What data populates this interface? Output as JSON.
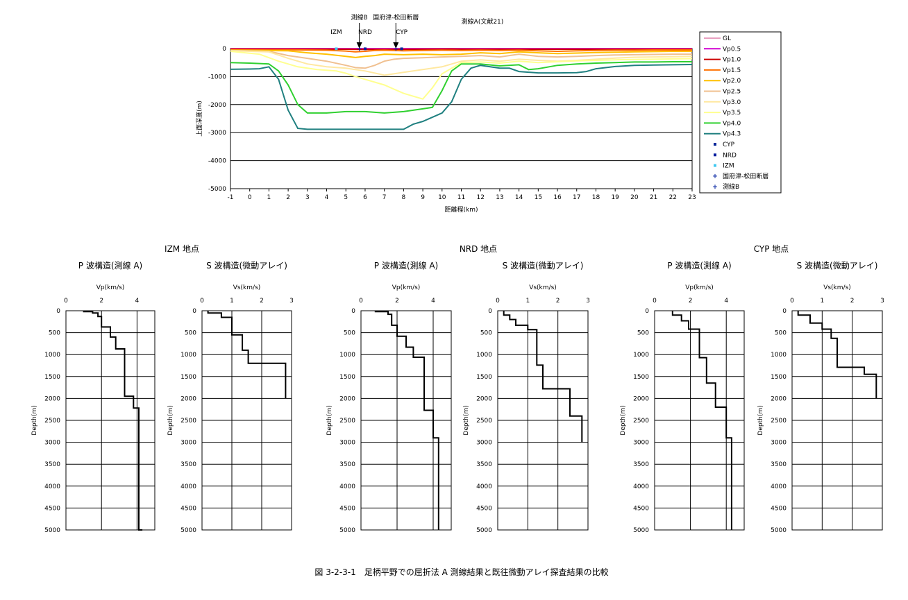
{
  "figure": {
    "caption": "図 3-2-3-1　足柄平野での屈折法 A 測線結果と既往微動アレイ探査結果の比較"
  },
  "chart_data": [
    {
      "type": "line",
      "xlabel": "距離程(km)",
      "ylabel": "上面深度(m)",
      "xlim": [
        -1,
        23
      ],
      "ylim": [
        -5000,
        0
      ],
      "xticks": [
        -1,
        0,
        1,
        2,
        3,
        4,
        5,
        6,
        7,
        8,
        9,
        10,
        11,
        12,
        13,
        14,
        15,
        16,
        17,
        18,
        19,
        20,
        21,
        22,
        23
      ],
      "yticks": [
        0,
        -1000,
        -2000,
        -3000,
        -4000,
        -5000
      ],
      "grid": "horizontal",
      "legend_position": "right",
      "annotations": [
        {
          "text": "測線B",
          "x": 5.7
        },
        {
          "text": "国府津-松田断層",
          "x": 7.6
        },
        {
          "text": "測線A(文献21)",
          "x": 12.1
        },
        {
          "text": "IZM",
          "x": 4.5
        },
        {
          "text": "NRD",
          "x": 6.0
        },
        {
          "text": "CYP",
          "x": 7.9
        }
      ],
      "series": [
        {
          "name": "GL",
          "color": "#e8a0c0",
          "x": [
            -1,
            23
          ],
          "y": [
            0,
            0
          ]
        },
        {
          "name": "Vp0.5",
          "color": "#d000d0",
          "x": [
            -1,
            23
          ],
          "y": [
            -5,
            -5
          ]
        },
        {
          "name": "Vp1.0",
          "color": "#cc0000",
          "x": [
            -1,
            5,
            6,
            7,
            8,
            9,
            10.5,
            11,
            23
          ],
          "y": [
            -20,
            -25,
            -30,
            -30,
            -30,
            -25,
            -20,
            -25,
            -25
          ]
        },
        {
          "name": "Vp1.5",
          "color": "#ff7000",
          "x": [
            -1,
            2,
            4,
            5,
            5.5,
            6,
            6.5,
            7,
            8,
            9,
            10,
            11,
            12,
            13,
            14,
            15,
            16,
            17,
            18,
            19,
            20,
            21,
            22,
            23
          ],
          "y": [
            -40,
            -45,
            -60,
            -90,
            -120,
            -100,
            -70,
            -60,
            -80,
            -70,
            -60,
            -70,
            -60,
            -70,
            -60,
            -80,
            -100,
            -80,
            -70,
            -60,
            -60,
            -50,
            -50,
            -50
          ]
        },
        {
          "name": "Vp2.0",
          "color": "#ffc000",
          "x": [
            -1,
            2,
            3,
            4,
            5,
            5.5,
            6,
            6.5,
            7,
            8,
            9,
            10,
            11,
            12,
            13,
            14,
            15,
            16,
            17,
            18,
            19,
            20,
            21,
            22,
            23
          ],
          "y": [
            -60,
            -80,
            -150,
            -200,
            -280,
            -320,
            -280,
            -250,
            -200,
            -220,
            -200,
            -220,
            -200,
            -150,
            -180,
            -120,
            -150,
            -180,
            -160,
            -140,
            -130,
            -120,
            -110,
            -100,
            -100
          ]
        },
        {
          "name": "Vp2.5",
          "color": "#f0c090",
          "x": [
            -1,
            1,
            2,
            3,
            4,
            5,
            5.5,
            6,
            6.5,
            7,
            7.5,
            8,
            9,
            10,
            11,
            12,
            13,
            14,
            15,
            16,
            17,
            18,
            19,
            20,
            21,
            22,
            23
          ],
          "y": [
            -70,
            -100,
            -250,
            -350,
            -450,
            -600,
            -680,
            -700,
            -600,
            -450,
            -380,
            -350,
            -330,
            -300,
            -280,
            -250,
            -300,
            -200,
            -280,
            -300,
            -280,
            -250,
            -230,
            -220,
            -210,
            -200,
            -200
          ]
        },
        {
          "name": "Vp3.0",
          "color": "#ffe8a0",
          "x": [
            -1,
            1,
            2,
            3,
            4,
            5,
            6,
            7,
            7.5,
            8,
            9,
            10,
            11,
            12,
            13,
            14,
            15,
            16,
            17,
            18,
            19,
            20,
            21,
            22,
            23
          ],
          "y": [
            -80,
            -120,
            -350,
            -550,
            -650,
            -700,
            -800,
            -950,
            -900,
            -850,
            -750,
            -650,
            -450,
            -400,
            -450,
            -380,
            -420,
            -450,
            -420,
            -380,
            -340,
            -310,
            -300,
            -290,
            -280
          ]
        },
        {
          "name": "Vp3.5",
          "color": "#ffff90",
          "x": [
            -1,
            0.5,
            1.5,
            2.5,
            3.5,
            4.5,
            5,
            5.5,
            6,
            7,
            8,
            8.5,
            9,
            9.5,
            10,
            11,
            12,
            13,
            14,
            15,
            16,
            17,
            18,
            19,
            20,
            21,
            22,
            23
          ],
          "y": [
            -100,
            -200,
            -450,
            -650,
            -750,
            -800,
            -880,
            -1000,
            -1100,
            -1300,
            -1600,
            -1700,
            -1800,
            -1400,
            -900,
            -500,
            -480,
            -520,
            -450,
            -500,
            -470,
            -440,
            -420,
            -400,
            -390,
            -380,
            -370,
            -360
          ]
        },
        {
          "name": "Vp4.0",
          "color": "#30d030",
          "x": [
            -1,
            0,
            1,
            1.5,
            2,
            2.5,
            3,
            3.5,
            4,
            5,
            6,
            7,
            8,
            9,
            9.5,
            10,
            10.5,
            11,
            12,
            13,
            14,
            14.5,
            15,
            16,
            17,
            18,
            19,
            20,
            21,
            22,
            23
          ],
          "y": [
            -500,
            -520,
            -550,
            -800,
            -1300,
            -2000,
            -2300,
            -2300,
            -2300,
            -2250,
            -2250,
            -2300,
            -2250,
            -2150,
            -2100,
            -1500,
            -800,
            -550,
            -550,
            -620,
            -580,
            -750,
            -720,
            -600,
            -550,
            -520,
            -500,
            -480,
            -480,
            -470,
            -470
          ]
        },
        {
          "name": "Vp4.3",
          "color": "#208080",
          "x": [
            -1,
            0,
            0.5,
            1,
            1.5,
            2,
            2.5,
            3,
            4,
            5,
            6,
            7,
            8,
            8.5,
            9,
            10,
            10.5,
            11,
            11.5,
            12,
            12.5,
            13,
            13.5,
            14,
            15,
            16,
            17,
            17.5,
            18,
            19,
            20,
            21,
            22,
            23
          ],
          "y": [
            -740,
            -730,
            -720,
            -650,
            -1100,
            -2200,
            -2850,
            -2880,
            -2880,
            -2880,
            -2880,
            -2880,
            -2880,
            -2700,
            -2600,
            -2300,
            -1900,
            -1100,
            -700,
            -600,
            -650,
            -700,
            -700,
            -820,
            -870,
            -870,
            -860,
            -820,
            -720,
            -640,
            -600,
            -590,
            -580,
            -570
          ]
        },
        {
          "name": "CYP",
          "color": "#0a2a9a",
          "marker": "square",
          "x": [
            7.9
          ],
          "y": [
            -10
          ]
        },
        {
          "name": "NRD",
          "color": "#0020a0",
          "marker": "square",
          "x": [
            6.0
          ],
          "y": [
            -10
          ]
        },
        {
          "name": "IZM",
          "color": "#40c8f0",
          "marker": "square",
          "x": [
            4.5
          ],
          "y": [
            -10
          ]
        },
        {
          "name": "国府津-松田断層",
          "color": "#0020a0",
          "marker": "plus",
          "x": [
            7.6
          ],
          "y": [
            -15
          ]
        },
        {
          "name": "測線B",
          "color": "#0020a0",
          "marker": "plus",
          "x": [
            5.7
          ],
          "y": [
            -15
          ]
        }
      ]
    },
    {
      "type": "line",
      "title": "P 波構造(測線 A)",
      "site": "IZM 地点",
      "xlabel": "Vp(km/s)",
      "ylabel": "Depth(m)",
      "xlim": [
        0,
        5
      ],
      "xticks": [
        0,
        2,
        4
      ],
      "ylim": [
        0,
        5000
      ],
      "yticks": [
        0,
        500,
        1000,
        1500,
        2000,
        2500,
        3000,
        3500,
        4000,
        4500,
        5000
      ],
      "steps": [
        [
          0,
          1
        ],
        [
          20,
          1.5
        ],
        [
          50,
          1.8
        ],
        [
          130,
          2
        ],
        [
          370,
          2.5
        ],
        [
          600,
          2.8
        ],
        [
          870,
          3.3
        ],
        [
          1950,
          3.8
        ],
        [
          2220,
          4.1
        ],
        [
          5000,
          4.3
        ]
      ]
    },
    {
      "type": "line",
      "title": "S 波構造(微動アレイ)",
      "site": "IZM 地点",
      "xlabel": "Vs(km/s)",
      "ylabel": "Depth(m)",
      "xlim": [
        0,
        3
      ],
      "xticks": [
        0,
        1,
        2,
        3
      ],
      "ylim": [
        0,
        5000
      ],
      "yticks": [
        0,
        500,
        1000,
        1500,
        2000,
        2500,
        3000,
        3500,
        4000,
        4500,
        5000
      ],
      "steps": [
        [
          0,
          0.2
        ],
        [
          50,
          0.65
        ],
        [
          150,
          1.0
        ],
        [
          550,
          1.35
        ],
        [
          900,
          1.55
        ],
        [
          1200,
          2.8
        ],
        [
          2000,
          2.8
        ]
      ]
    },
    {
      "type": "line",
      "title": "P 波構造(測線 A)",
      "site": "NRD 地点",
      "xlabel": "Vp(km/s)",
      "ylabel": "Depth(m)",
      "xlim": [
        0,
        5
      ],
      "xticks": [
        0,
        2,
        4
      ],
      "ylim": [
        0,
        5000
      ],
      "yticks": [
        0,
        500,
        1000,
        1500,
        2000,
        2500,
        3000,
        3500,
        4000,
        4500,
        5000
      ],
      "steps": [
        [
          0,
          0.8
        ],
        [
          20,
          1.5
        ],
        [
          80,
          1.7
        ],
        [
          330,
          2
        ],
        [
          580,
          2.5
        ],
        [
          830,
          2.9
        ],
        [
          1060,
          3.5
        ],
        [
          2270,
          4.0
        ],
        [
          2900,
          4.3
        ],
        [
          5000,
          4.3
        ]
      ]
    },
    {
      "type": "line",
      "title": "S 波構造(微動アレイ)",
      "site": "NRD 地点",
      "xlabel": "Vs(km/s)",
      "ylabel": "Depth(m)",
      "xlim": [
        0,
        3
      ],
      "xticks": [
        0,
        1,
        2,
        3
      ],
      "ylim": [
        0,
        5000
      ],
      "yticks": [
        0,
        500,
        1000,
        1500,
        2000,
        2500,
        3000,
        3500,
        4000,
        4500,
        5000
      ],
      "steps": [
        [
          0,
          0.2
        ],
        [
          100,
          0.4
        ],
        [
          200,
          0.6
        ],
        [
          330,
          1.0
        ],
        [
          430,
          1.3
        ],
        [
          1240,
          1.5
        ],
        [
          1780,
          2.4
        ],
        [
          2400,
          2.8
        ],
        [
          3000,
          2.8
        ]
      ]
    },
    {
      "type": "line",
      "title": "P 波構造(測線 A)",
      "site": "CYP 地点",
      "xlabel": "Vp(km/s)",
      "ylabel": "Depth(m)",
      "xlim": [
        0,
        5
      ],
      "xticks": [
        0,
        2,
        4
      ],
      "ylim": [
        0,
        5000
      ],
      "yticks": [
        0,
        500,
        1000,
        1500,
        2000,
        2500,
        3000,
        3500,
        4000,
        4500,
        5000
      ],
      "steps": [
        [
          0,
          1.0
        ],
        [
          100,
          1.5
        ],
        [
          230,
          1.9
        ],
        [
          420,
          2.5
        ],
        [
          1070,
          2.9
        ],
        [
          1650,
          3.4
        ],
        [
          2200,
          4.0
        ],
        [
          2900,
          4.3
        ],
        [
          5000,
          4.3
        ]
      ]
    },
    {
      "type": "line",
      "title": "S 波構造(微動アレイ)",
      "site": "CYP 地点",
      "xlabel": "Vs(km/s)",
      "ylabel": "Depth(m)",
      "xlim": [
        0,
        3
      ],
      "xticks": [
        0,
        1,
        2,
        3
      ],
      "ylim": [
        0,
        5000
      ],
      "yticks": [
        0,
        500,
        1000,
        1500,
        2000,
        2500,
        3000,
        3500,
        4000,
        4500,
        5000
      ],
      "steps": [
        [
          0,
          0.2
        ],
        [
          100,
          0.6
        ],
        [
          280,
          1.0
        ],
        [
          420,
          1.3
        ],
        [
          630,
          1.5
        ],
        [
          1290,
          2.4
        ],
        [
          1450,
          2.8
        ],
        [
          2000,
          2.8
        ]
      ]
    }
  ]
}
